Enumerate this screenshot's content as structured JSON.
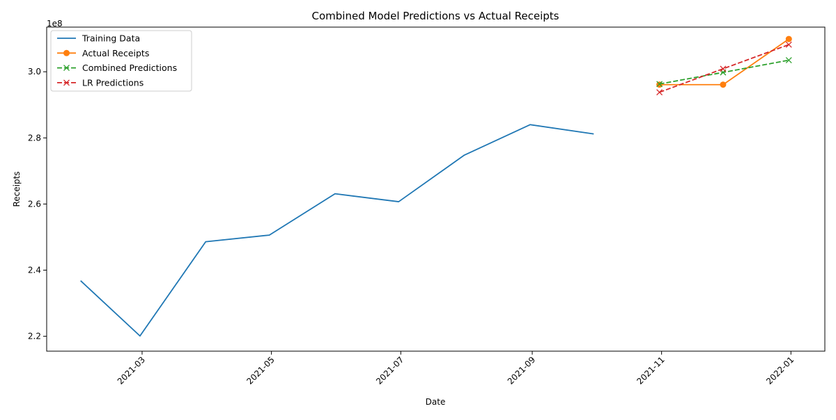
{
  "chart_data": {
    "type": "line",
    "title": "Combined Model Predictions vs Actual Receipts",
    "xlabel": "Date",
    "ylabel": "Receipts",
    "y_scale_label": "1e8",
    "ylim": [
      215500000,
      313500000
    ],
    "xlim": [
      "2021-01-15",
      "2022-01-17"
    ],
    "x_ticks": [
      "2021-03",
      "2021-05",
      "2021-07",
      "2021-09",
      "2021-11",
      "2022-01"
    ],
    "x_tick_dates": [
      "2021-03-01",
      "2021-05-01",
      "2021-07-01",
      "2021-09-01",
      "2021-11-01",
      "2022-01-01"
    ],
    "y_ticks": [
      "2.2",
      "2.4",
      "2.6",
      "2.8",
      "3.0"
    ],
    "y_tick_values": [
      220000000,
      240000000,
      260000000,
      280000000,
      300000000
    ],
    "grid": false,
    "legend_position": "top-left",
    "series": [
      {
        "name": "Training Data",
        "color": "#1f77b4",
        "style": "solid",
        "marker": "none",
        "x": [
          "2021-01-31",
          "2021-02-28",
          "2021-03-31",
          "2021-04-30",
          "2021-05-31",
          "2021-06-30",
          "2021-07-31",
          "2021-08-31",
          "2021-09-30"
        ],
        "values": [
          236800000,
          220100000,
          248600000,
          250600000,
          263100000,
          260700000,
          274800000,
          284000000,
          281200000
        ]
      },
      {
        "name": "Actual Receipts",
        "color": "#ff7f0e",
        "style": "solid",
        "marker": "circle",
        "x": [
          "2021-10-31",
          "2021-11-30",
          "2021-12-31"
        ],
        "values": [
          296100000,
          296100000,
          309900000
        ]
      },
      {
        "name": "Combined Predictions",
        "color": "#2ca02c",
        "style": "dashed",
        "marker": "x",
        "x": [
          "2021-10-31",
          "2021-11-30",
          "2021-12-31"
        ],
        "values": [
          296300000,
          299800000,
          303500000
        ]
      },
      {
        "name": "LR Predictions",
        "color": "#d62728",
        "style": "dashed",
        "marker": "x",
        "x": [
          "2021-10-31",
          "2021-11-30",
          "2021-12-31"
        ],
        "values": [
          293800000,
          300900000,
          308200000
        ]
      }
    ]
  }
}
